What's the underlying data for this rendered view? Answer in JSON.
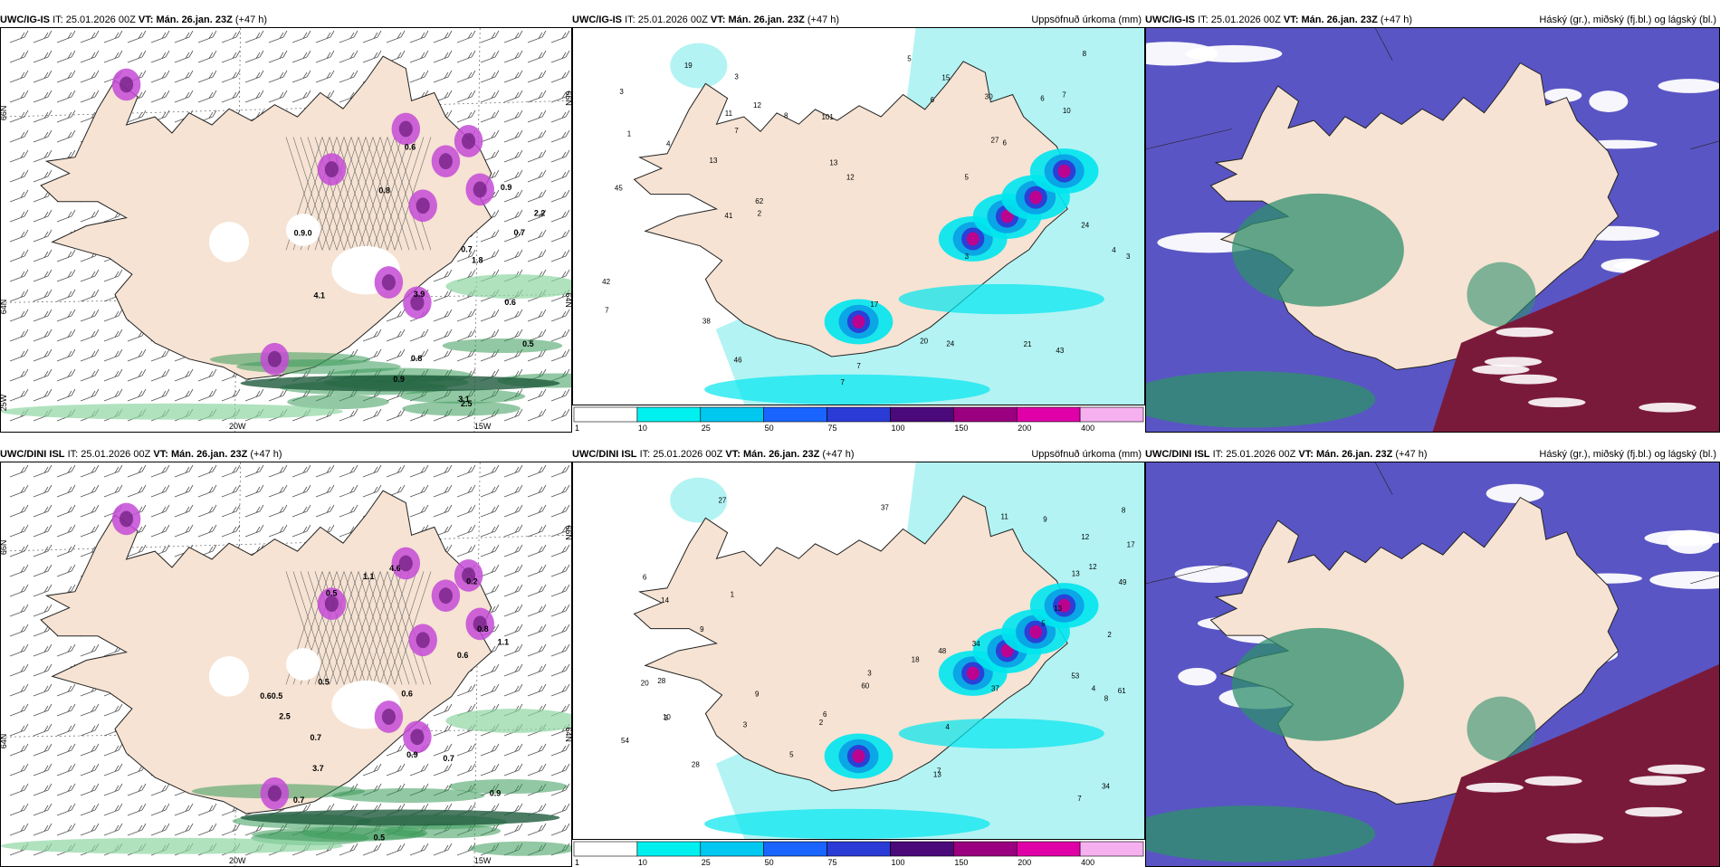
{
  "palette": {
    "land": "#f6e3d3",
    "sea": "#ffffff",
    "precip_light": "#b3f3f3",
    "precip_cyan": "#00e5ee",
    "precip_blue": "#0a9fe6",
    "precip_dark": "#2a3bd6",
    "precip_purple": "#5b1a8c",
    "precip_magenta": "#c4008c",
    "high_cloud": "#5a55c4",
    "mid_cloud": "#2f8f6e",
    "low_cloud": "#7a1a3a",
    "snow_pink": "#c44bd6",
    "rain_green": "#3a9a5a"
  },
  "rows": [
    {
      "id": "igis",
      "panels": [
        {
          "kind": "wind",
          "model": "UWC/IG-IS",
          "it_label": "IT:",
          "it_value": "25.01.2026 00Z",
          "vt_label": "VT:",
          "vt_value": "Mán. 26.jan. 23Z",
          "lead": "(+47 h)",
          "right_title": "",
          "lon_labels": [
            "20W",
            "15W"
          ],
          "lat_labels": [
            "66N",
            "64N",
            "25W"
          ],
          "lat_labels_right": [
            "66N",
            "64N"
          ],
          "values": [
            "0.5",
            "0.6",
            "0.9",
            "0.7",
            "0.8",
            "3.1",
            "2.2",
            "4.1",
            "3.9",
            "0.9",
            "0.6",
            "0.7",
            "1.8",
            "2.5",
            "0.8",
            "0.9.0"
          ]
        },
        {
          "kind": "precip",
          "model": "UWC/IG-IS",
          "it_label": "IT:",
          "it_value": "25.01.2026 00Z",
          "vt_label": "VT:",
          "vt_value": "Mán. 26.jan. 23Z",
          "lead": "(+47 h)",
          "right_title": "Uppsöfnuð úrkoma (mm)",
          "values": [
            "1",
            "7",
            "5",
            "7",
            "6",
            "7",
            "3",
            "2",
            "7",
            "3",
            "4",
            "12",
            "27",
            "38",
            "45",
            "46",
            "62",
            "101",
            "43",
            "20",
            "21",
            "24",
            "12",
            "17",
            "30",
            "13",
            "10",
            "15",
            "19",
            "41",
            "42",
            "24",
            "8",
            "4",
            "3",
            "3",
            "8",
            "6",
            "5",
            "7",
            "6",
            "11",
            "13"
          ]
        },
        {
          "kind": "cloud",
          "model": "UWC/IG-IS",
          "it_label": "IT:",
          "it_value": "25.01.2026 00Z",
          "vt_label": "VT:",
          "vt_value": "Mán. 26.jan. 23Z",
          "lead": "(+47 h)",
          "right_title": "Háský (gr.), miðský (fj.bl.) og lágský (bl.)"
        }
      ]
    },
    {
      "id": "dini",
      "panels": [
        {
          "kind": "wind",
          "model": "UWC/DINI ISL",
          "it_label": "IT:",
          "it_value": "25.01.2026 00Z",
          "vt_label": "VT:",
          "vt_value": "Mán. 26.jan. 23Z",
          "lead": "(+47 h)",
          "right_title": "",
          "lon_labels": [
            "20W",
            "15W"
          ],
          "lat_labels": [
            "66N",
            "64N"
          ],
          "lat_labels_right": [
            "66N",
            "64N"
          ],
          "values": [
            "0.7",
            "0.2",
            "0.5",
            "0.8",
            "0.9",
            "0.5",
            "0.7",
            "3.7",
            "1.1",
            "0.6",
            "2.5",
            "4.6",
            "0.7",
            "0.6",
            "0.5",
            "1.1",
            "0.9",
            "0.60.5"
          ]
        },
        {
          "kind": "precip",
          "model": "UWC/DINI ISL",
          "it_label": "IT:",
          "it_value": "25.01.2026 00Z",
          "vt_label": "VT:",
          "vt_value": "Mán. 26.jan. 23Z",
          "lead": "(+47 h)",
          "right_title": "Uppsöfnuð úrkoma (mm)",
          "values": [
            "1",
            "3",
            "6",
            "5",
            "4",
            "2",
            "7",
            "9",
            "28",
            "27",
            "37",
            "54",
            "48",
            "49",
            "53",
            "60",
            "61",
            "20",
            "10",
            "13",
            "12",
            "9",
            "34",
            "37",
            "17",
            "18",
            "13",
            "12",
            "28",
            "34",
            "8",
            "5",
            "3",
            "6",
            "14",
            "13",
            "4",
            "3",
            "2",
            "8",
            "7",
            "9",
            "11"
          ]
        },
        {
          "kind": "cloud",
          "model": "UWC/DINI ISL",
          "it_label": "IT:",
          "it_value": "25.01.2026 00Z",
          "vt_label": "VT:",
          "vt_value": "Mán. 26.jan. 23Z",
          "lead": "(+47 h)",
          "right_title": "Háský (gr.), miðský (fj.bl.) og lágský (bl.)"
        }
      ]
    }
  ],
  "colorbar": {
    "ticks": [
      "1",
      "10",
      "25",
      "50",
      "75",
      "100",
      "150",
      "200",
      "400"
    ],
    "colors": [
      "#ffffff",
      "#00f0f0",
      "#00c8f0",
      "#1a64ff",
      "#2a3bd6",
      "#4a0a7a",
      "#9a0080",
      "#e000a8",
      "#f6b0f0"
    ]
  }
}
